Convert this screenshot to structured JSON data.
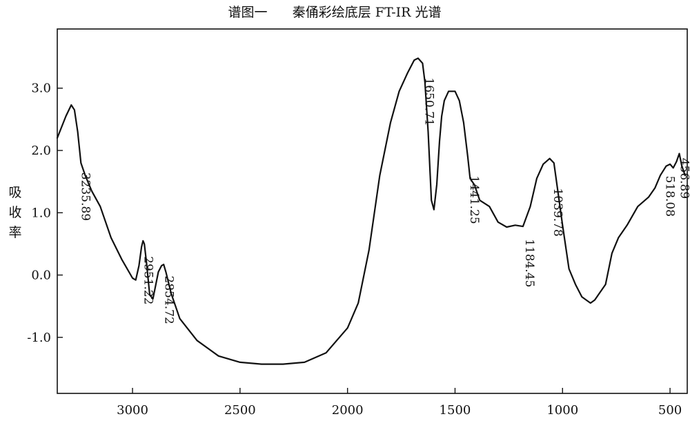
{
  "chart_data": {
    "type": "line",
    "title": "谱图一      秦俑彩绘底层 FT-IR 光谱",
    "xlabel": "",
    "ylabel": "吸收率",
    "xlim": [
      3350,
      420
    ],
    "ylim": [
      -1.9,
      3.95
    ],
    "x_ticks": [
      {
        "value": 3000,
        "label": "3000"
      },
      {
        "value": 2500,
        "label": "2500"
      },
      {
        "value": 2000,
        "label": "2000"
      },
      {
        "value": 1500,
        "label": "1500"
      },
      {
        "value": 1000,
        "label": "1000"
      },
      {
        "value": 500,
        "label": "500"
      }
    ],
    "y_ticks": [
      {
        "value": 3.0,
        "label": "3.0"
      },
      {
        "value": 2.0,
        "label": "2.0"
      },
      {
        "value": 1.0,
        "label": "1.0"
      },
      {
        "value": 0.0,
        "label": "0.0"
      },
      {
        "value": -1.0,
        "label": "-1.0"
      }
    ],
    "series": [
      {
        "x": [
          3350,
          3310,
          3285,
          3270,
          3255,
          3240,
          3220,
          3190,
          3150,
          3100,
          3050,
          3000,
          2985,
          2970,
          2958,
          2951,
          2945,
          2935,
          2920,
          2905,
          2880,
          2865,
          2855,
          2845,
          2820,
          2780,
          2700,
          2600,
          2500,
          2400,
          2300,
          2200,
          2100,
          2000,
          1950,
          1900,
          1850,
          1800,
          1760,
          1720,
          1690,
          1672,
          1651,
          1640,
          1625,
          1610,
          1598,
          1585,
          1572,
          1562,
          1550,
          1530,
          1500,
          1480,
          1460,
          1441,
          1430,
          1410,
          1385,
          1340,
          1300,
          1260,
          1220,
          1184,
          1150,
          1120,
          1090,
          1060,
          1040,
          1000,
          970,
          940,
          910,
          890,
          870,
          850,
          830,
          800,
          770,
          740,
          700,
          650,
          600,
          570,
          545,
          518,
          500,
          485,
          470,
          457,
          445,
          430
        ],
        "y": [
          2.2,
          2.55,
          2.73,
          2.65,
          2.3,
          1.8,
          1.6,
          1.35,
          1.1,
          0.6,
          0.25,
          -0.05,
          -0.08,
          0.15,
          0.45,
          0.55,
          0.5,
          0.2,
          -0.32,
          -0.38,
          0.05,
          0.15,
          0.17,
          0.05,
          -0.3,
          -0.7,
          -1.05,
          -1.3,
          -1.4,
          -1.43,
          -1.43,
          -1.4,
          -1.25,
          -0.85,
          -0.45,
          0.4,
          1.6,
          2.45,
          2.95,
          3.25,
          3.45,
          3.48,
          3.4,
          3.1,
          2.3,
          1.2,
          1.05,
          1.45,
          2.15,
          2.55,
          2.8,
          2.95,
          2.95,
          2.8,
          2.45,
          1.9,
          1.55,
          1.45,
          1.2,
          1.1,
          0.85,
          0.77,
          0.8,
          0.78,
          1.1,
          1.55,
          1.78,
          1.87,
          1.8,
          0.8,
          0.1,
          -0.15,
          -0.35,
          -0.4,
          -0.45,
          -0.4,
          -0.3,
          -0.15,
          0.35,
          0.6,
          0.8,
          1.1,
          1.25,
          1.4,
          1.6,
          1.75,
          1.78,
          1.72,
          1.82,
          1.95,
          1.75,
          1.6
        ]
      }
    ],
    "annotations": [
      {
        "label": "3235.89",
        "x": 3235.89
      },
      {
        "label": "2951.22",
        "x": 2951.22
      },
      {
        "label": "2854.72",
        "x": 2854.72
      },
      {
        "label": "1650.71",
        "x": 1650.71
      },
      {
        "label": "1441.25",
        "x": 1441.25
      },
      {
        "label": "1184.45",
        "x": 1184.45
      },
      {
        "label": "1039.78",
        "x": 1039.78
      },
      {
        "label": "518.08",
        "x": 518.08
      },
      {
        "label": "456.89",
        "x": 456.89
      }
    ]
  }
}
